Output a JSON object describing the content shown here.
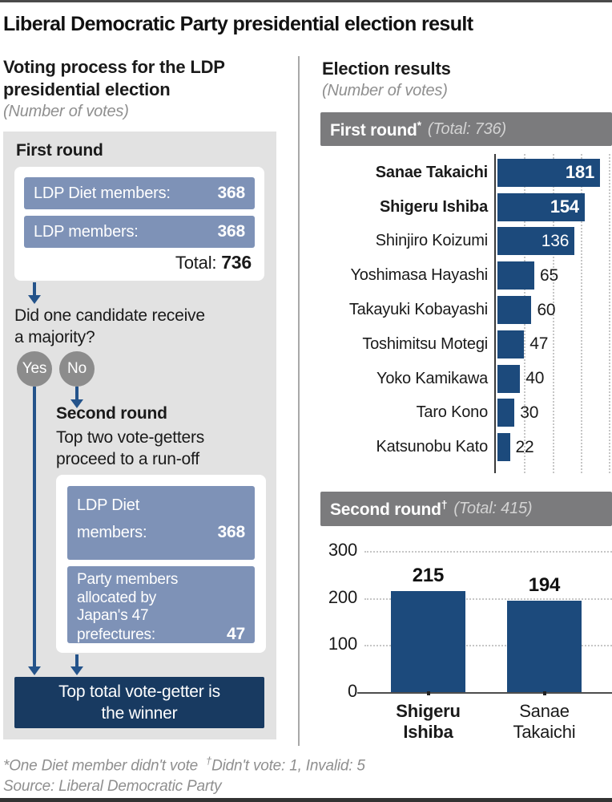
{
  "title": "Liberal Democratic Party presidential election result",
  "left": {
    "heading_lines": [
      "Voting process for the LDP",
      "presidential election"
    ],
    "unit_note": "(Number of votes)",
    "first_round": {
      "label": "First round",
      "rows": [
        {
          "label": "LDP Diet members:",
          "value": "368"
        },
        {
          "label": "LDP members:",
          "value": "368"
        }
      ],
      "total_label": "Total:",
      "total_value": "736"
    },
    "question_lines": [
      "Did one candidate receive",
      "a majority?"
    ],
    "yes": "Yes",
    "no": "No",
    "second_round": {
      "label": "Second round",
      "desc_lines": [
        "Top two vote-getters",
        "proceed to a run-off"
      ],
      "diet_box": {
        "line1": "LDP Diet",
        "line2": "members:",
        "value": "368"
      },
      "party_box": {
        "line1": "Party members",
        "line2": "allocated by",
        "line3": "Japan's 47",
        "line4": "prefectures:",
        "value": "47"
      }
    },
    "winner_lines": [
      "Top total vote-getter is",
      "the winner"
    ]
  },
  "right": {
    "heading": "Election results",
    "unit_note": "(Number of votes)"
  },
  "chart_data": [
    {
      "type": "bar",
      "orientation": "horizontal",
      "title": "First round",
      "footnote_symbol": "*",
      "total_label": "(Total: 736)",
      "categories": [
        "Sanae Takaichi",
        "Shigeru Ishiba",
        "Shinjiro Koizumi",
        "Yoshimasa Hayashi",
        "Takayuki Kobayashi",
        "Toshimitsu Motegi",
        "Yoko Kamikawa",
        "Taro Kono",
        "Katsunobu Kato"
      ],
      "values": [
        181,
        154,
        136,
        65,
        60,
        47,
        40,
        30,
        22
      ],
      "bold_categories": [
        "Sanae Takaichi",
        "Shigeru Ishiba"
      ],
      "xlim": [
        0,
        205
      ],
      "gridlines": [
        50,
        100,
        150,
        200
      ],
      "grid": "dotted",
      "legend": "none",
      "bar_color": "#1c4a7c"
    },
    {
      "type": "bar",
      "orientation": "vertical",
      "title": "Second round",
      "footnote_symbol": "†",
      "total_label": "(Total: 415)",
      "categories": [
        "Shigeru Ishiba",
        "Sanae Takaichi"
      ],
      "categories_lines": [
        [
          "Shigeru",
          "Ishiba"
        ],
        [
          "Sanae",
          "Takaichi"
        ]
      ],
      "values": [
        215,
        194
      ],
      "bold_categories": [
        "Shigeru Ishiba"
      ],
      "ylim": [
        0,
        300
      ],
      "yticks": [
        0,
        100,
        200,
        300
      ],
      "grid": "dotted",
      "legend": "none",
      "bar_color": "#1c4a7c"
    }
  ],
  "colors": {
    "bar_navy": "#1c4a7c",
    "winner_navy": "#183a61",
    "flow_blue_box": "#7e92b7",
    "panel_gray": "#e2e2e2",
    "header_gray": "#7b7b7d",
    "circle_gray": "#8c8c8c",
    "arrow_blue": "#24538a",
    "muted_text": "#8f8f8f"
  },
  "footer": {
    "note_first": "*One Diet member didn't vote",
    "note_dagger_symbol": "†",
    "note_second": "Didn't vote: 1, Invalid: 5",
    "source": "Source: Liberal Democratic Party"
  }
}
